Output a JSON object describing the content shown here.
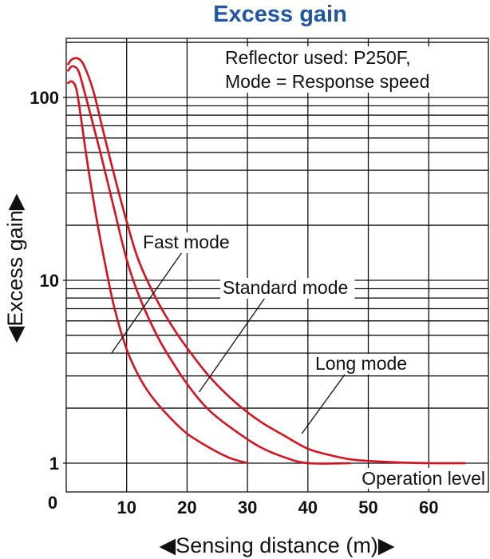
{
  "chart_data": {
    "type": "line",
    "title": "Excess gain",
    "xlabel": "◀Sensing distance (m)▶",
    "ylabel": "◀Excess gain▶",
    "x_ticks": [
      "10",
      "20",
      "30",
      "40",
      "50",
      "60"
    ],
    "y_ticks": [
      "1",
      "10",
      "100"
    ],
    "y_zero_label": "0",
    "xlim": [
      0,
      70
    ],
    "ylim": [
      1,
      200
    ],
    "yscale": "log",
    "grid": true,
    "note_lines": [
      "Reflector used: P250F,",
      "Mode = Response speed"
    ],
    "reference_line": {
      "label": "Operation level",
      "y": 1
    },
    "series": [
      {
        "name": "Fast mode",
        "points": [
          [
            0.3,
            120
          ],
          [
            1,
            122
          ],
          [
            1.7,
            110
          ],
          [
            2.5,
            75
          ],
          [
            3.5,
            44
          ],
          [
            5,
            22
          ],
          [
            6.5,
            12
          ],
          [
            8,
            7
          ],
          [
            10,
            4.2
          ],
          [
            12,
            3
          ],
          [
            14,
            2.35
          ],
          [
            17,
            1.8
          ],
          [
            20,
            1.45
          ],
          [
            24,
            1.2
          ],
          [
            27,
            1.07
          ],
          [
            30,
            1
          ]
        ]
      },
      {
        "name": "Standard mode",
        "points": [
          [
            0.3,
            140
          ],
          [
            1,
            148
          ],
          [
            2,
            140
          ],
          [
            3,
            108
          ],
          [
            4.5,
            70
          ],
          [
            6,
            45
          ],
          [
            8,
            24
          ],
          [
            10,
            13
          ],
          [
            12,
            8.3
          ],
          [
            15,
            5
          ],
          [
            18,
            3.4
          ],
          [
            21,
            2.45
          ],
          [
            24,
            1.9
          ],
          [
            28,
            1.5
          ],
          [
            32,
            1.23
          ],
          [
            36,
            1.08
          ],
          [
            40,
            1
          ],
          [
            47,
            1
          ]
        ]
      },
      {
        "name": "Long mode",
        "points": [
          [
            0.3,
            152
          ],
          [
            1,
            162
          ],
          [
            2,
            163
          ],
          [
            3,
            148
          ],
          [
            4.5,
            108
          ],
          [
            6,
            68
          ],
          [
            8,
            37
          ],
          [
            10,
            21
          ],
          [
            12,
            12.8
          ],
          [
            15,
            7.8
          ],
          [
            18,
            5.3
          ],
          [
            21,
            3.85
          ],
          [
            24,
            2.9
          ],
          [
            28,
            2.15
          ],
          [
            32,
            1.7
          ],
          [
            36,
            1.42
          ],
          [
            40,
            1.2
          ],
          [
            44,
            1.1
          ],
          [
            48,
            1.04
          ],
          [
            55,
            1.01
          ],
          [
            60,
            1
          ],
          [
            66,
            1
          ]
        ]
      }
    ]
  }
}
